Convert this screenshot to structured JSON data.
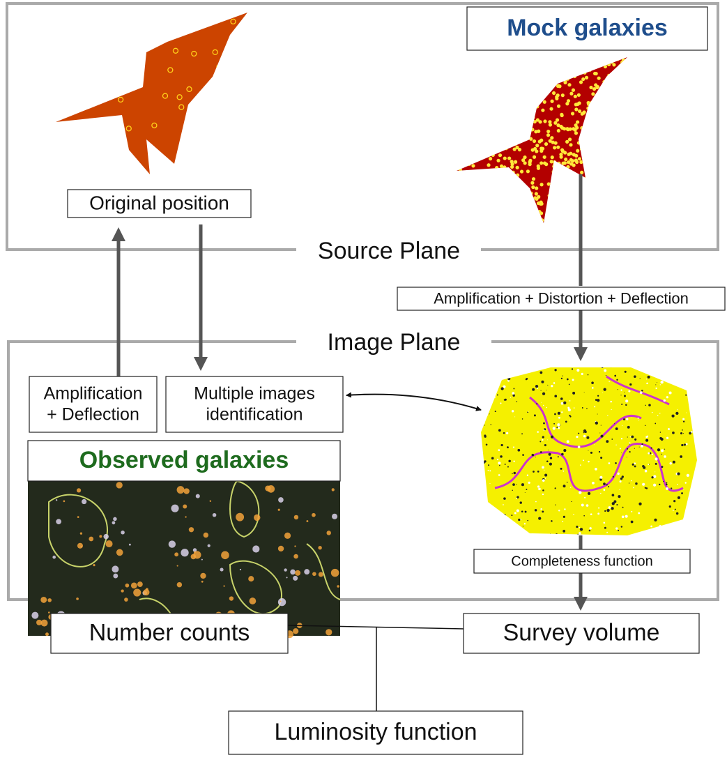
{
  "source_plane": {
    "label": "Source Plane"
  },
  "image_plane": {
    "label": "Image Plane"
  },
  "nodes": [
    {
      "lines": [
        "Mock galaxies"
      ]
    },
    {
      "lines": [
        "Original position"
      ]
    },
    {
      "lines": [
        "Amplification + Distortion + Deflection"
      ]
    },
    {
      "lines": [
        "Amplification",
        "+ Deflection"
      ]
    },
    {
      "lines": [
        "Multiple images",
        "identification"
      ]
    },
    {
      "lines": [
        "Observed galaxies"
      ]
    },
    {
      "lines": [
        "Completeness function"
      ]
    },
    {
      "lines": [
        "Number counts"
      ]
    },
    {
      "lines": [
        "Survey volume"
      ]
    },
    {
      "lines": [
        "Luminosity function"
      ]
    }
  ]
}
